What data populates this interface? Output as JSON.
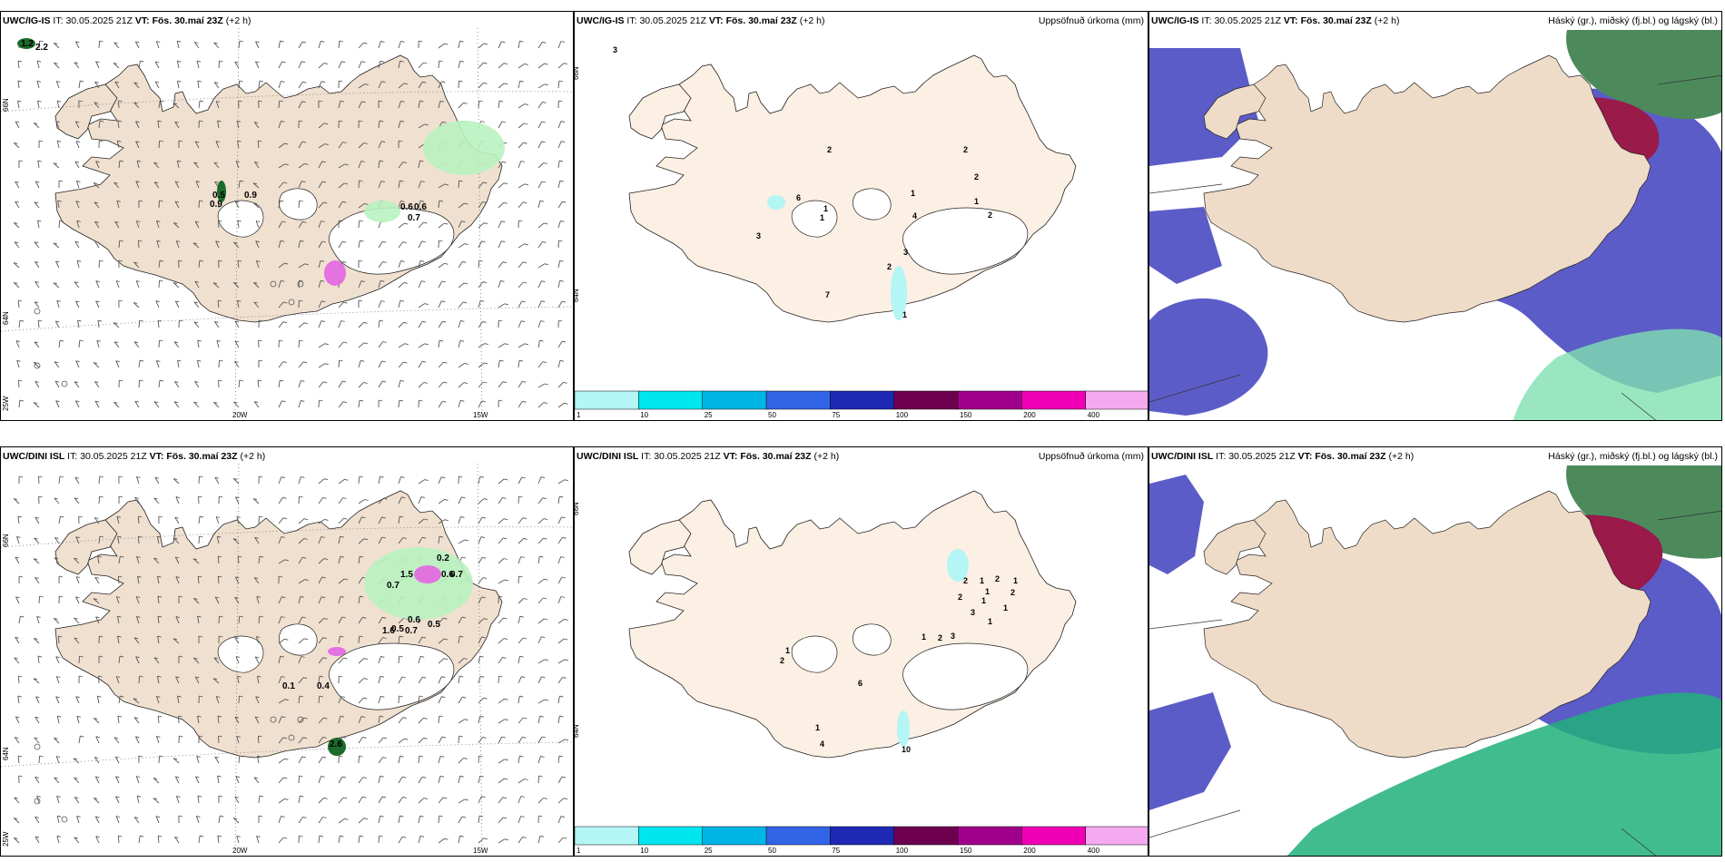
{
  "rows": [
    {
      "model": "UWC/IG-IS",
      "it_label": "IT:",
      "it_value": "30.05.2025 21Z",
      "vt_label": "VT:",
      "vt_value": "Fös. 30.maí 23Z",
      "lead": "(+2 h)"
    },
    {
      "model": "UWC/DINI ISL",
      "it_label": "IT:",
      "it_value": "30.05.2025 21Z",
      "vt_label": "VT:",
      "vt_value": "Fös. 30.maí 23Z",
      "lead": "(+2 h)"
    }
  ],
  "precip_title": "Uppsöfnuð úrkoma (mm)",
  "cloud_title": "Háský (gr.), miðský (fj.bl.) og lágský (bl.)",
  "axis": {
    "lon_labels": [
      "20W",
      "15W"
    ],
    "lat_labels": [
      "66N",
      "64N"
    ],
    "lon_left": "25W"
  },
  "colorbar": {
    "labels": [
      "1",
      "10",
      "25",
      "50",
      "75",
      "100",
      "150",
      "200",
      "400"
    ],
    "colors": [
      "#b4f5f5",
      "#00e6f0",
      "#00b4e6",
      "#3264e6",
      "#1e28b4",
      "#6e0050",
      "#a0008c",
      "#f000b4",
      "#f5aaf0"
    ]
  },
  "precip_values_top": [
    "3",
    "2",
    "2",
    "2",
    "6",
    "1",
    "1",
    "1",
    "4",
    "2",
    "1",
    "3",
    "3",
    "2",
    "7",
    "1"
  ],
  "precip_values_bottom": [
    "2",
    "1",
    "2",
    "1",
    "1",
    "2",
    "2",
    "1",
    "3",
    "1",
    "1",
    "2",
    "1",
    "3",
    "1",
    "2",
    "6",
    "1",
    "4",
    "10"
  ],
  "wind_values_top": [
    "1.2",
    "2.2",
    "0.5",
    "0.9",
    "0.9",
    "0.6",
    "0.6",
    "0.7"
  ],
  "wind_values_bottom": [
    "0.2",
    "0.6",
    "0.7",
    "1.5",
    "0.7",
    "0.5",
    "0.7",
    "0.5",
    "1.6",
    "0.6",
    "2.6",
    "0.4",
    "0.1"
  ]
}
